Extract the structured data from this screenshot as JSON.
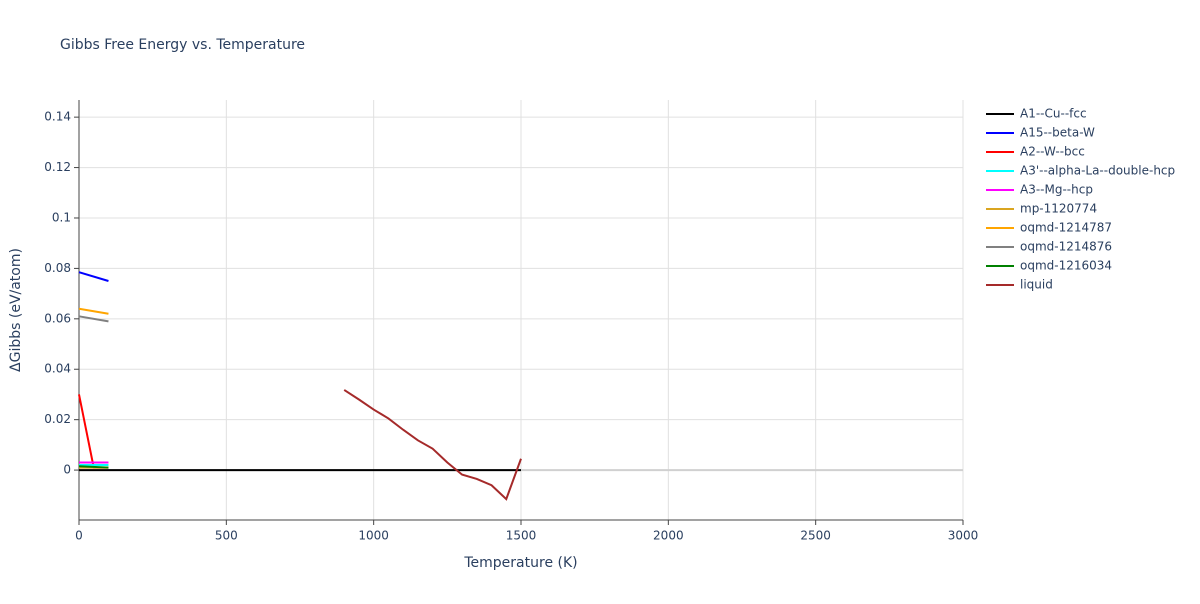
{
  "chart_data": {
    "type": "line",
    "title": "Gibbs Free Energy vs. Temperature",
    "x_label": "Temperature (K)",
    "y_label": "ΔGibbs (eV/atom)",
    "xlim": [
      0,
      3000
    ],
    "xticks": [
      0,
      500,
      1000,
      1500,
      2000,
      2500,
      3000
    ],
    "ylim": [
      -0.0198,
      0.1468
    ],
    "yticks": [
      0,
      0.02,
      0.04,
      0.06,
      0.08,
      0.1,
      0.12,
      0.14
    ],
    "grid": true,
    "legend": "right",
    "series": [
      {
        "name": "A1--Cu--fcc",
        "color": "#000000",
        "x": [
          0,
          1500
        ],
        "values": [
          0,
          0
        ]
      },
      {
        "name": "A15--beta-W",
        "color": "#0000ff",
        "x": [
          0,
          100
        ],
        "values": [
          0.0785,
          0.075
        ]
      },
      {
        "name": "A2--W--bcc",
        "color": "#ff0000",
        "x": [
          0,
          50,
          100
        ],
        "values": [
          0.03,
          0.001,
          0.001
        ]
      },
      {
        "name": "A3'--alpha-La--double-hcp",
        "color": "#00ffff",
        "x": [
          0,
          100
        ],
        "values": [
          0.002,
          0.002
        ]
      },
      {
        "name": "A3--Mg--hcp",
        "color": "#ff00ff",
        "x": [
          0,
          100
        ],
        "values": [
          0.003,
          0.003
        ]
      },
      {
        "name": "mp-1120774",
        "color": "#daa520",
        "x": [
          0,
          100
        ],
        "values": [
          0.001,
          0.001
        ]
      },
      {
        "name": "oqmd-1214787",
        "color": "#ffa500",
        "x": [
          0,
          100
        ],
        "values": [
          0.064,
          0.062
        ]
      },
      {
        "name": "oqmd-1214876",
        "color": "#808080",
        "x": [
          0,
          100
        ],
        "values": [
          0.061,
          0.059
        ]
      },
      {
        "name": "oqmd-1216034",
        "color": "#008000",
        "x": [
          0,
          100
        ],
        "values": [
          0.0015,
          0.001
        ]
      },
      {
        "name": "liquid",
        "color": "#a52a2a",
        "x": [
          900,
          950,
          1000,
          1050,
          1100,
          1150,
          1200,
          1250,
          1300,
          1350,
          1400,
          1450,
          1500
        ],
        "values": [
          0.0318,
          0.028,
          0.024,
          0.0205,
          0.016,
          0.0118,
          0.0085,
          0.003,
          -0.0018,
          -0.0035,
          -0.006,
          -0.0115,
          0.0045
        ]
      }
    ]
  }
}
